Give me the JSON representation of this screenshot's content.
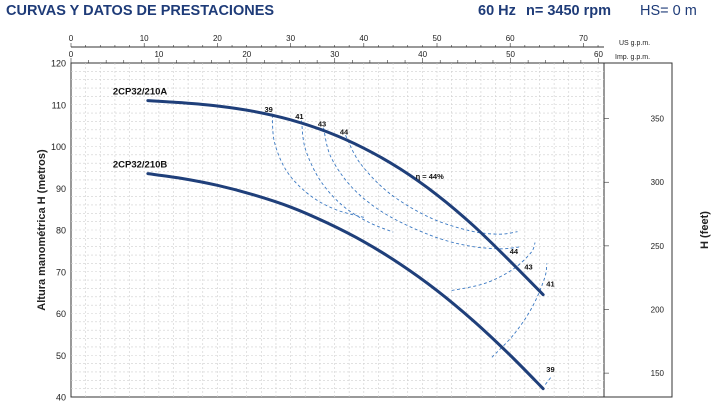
{
  "header": {
    "title": "CURVAS Y DATOS DE PRESTACIONES",
    "frequency": "60 Hz",
    "speed": "n= 3450 rpm",
    "hs": "HS= 0 m"
  },
  "colors": {
    "curve": "#1f3f7a",
    "grid": "#cfcfcf",
    "text": "#1e3b78"
  },
  "chart_data": {
    "type": "line",
    "title": "",
    "xlabel_top_us": "US g.p.m.",
    "xlabel_top_imp": "Imp. g.p.m.",
    "ylabel_left": "Altura manométrica H (metros)",
    "ylabel_right": "H (feet)",
    "xlim_us": [
      0,
      80
    ],
    "us_ticks": [
      0,
      10,
      20,
      30,
      40,
      50,
      60,
      70
    ],
    "imp_ticks": [
      0,
      10,
      20,
      30,
      40,
      50,
      60
    ],
    "ylim_m": [
      40,
      120
    ],
    "y_ticks_m": [
      40,
      50,
      60,
      70,
      80,
      90,
      100,
      110,
      120
    ],
    "y_ticks_ft": [
      150,
      200,
      250,
      300,
      350
    ],
    "grid": true,
    "series": [
      {
        "name": "2CP32/210A",
        "x": [
          10.5,
          15,
          20,
          25,
          30,
          35,
          40,
          45,
          50,
          55,
          60,
          64.5
        ],
        "y": [
          111,
          110.5,
          109.7,
          108.4,
          106.4,
          103.5,
          99.6,
          94.6,
          88.4,
          81,
          72.5,
          64.5
        ]
      },
      {
        "name": "2CP32/210B",
        "x": [
          10.5,
          15,
          20,
          25,
          30,
          35,
          40,
          45,
          50,
          55,
          60,
          64.5
        ],
        "y": [
          93.5,
          92.4,
          90.7,
          88.4,
          85.5,
          81.7,
          77.2,
          71.8,
          65.5,
          58.2,
          50,
          42
        ]
      }
    ],
    "efficiency_labels": [
      {
        "text": "39",
        "x": 27,
        "y": 108.3
      },
      {
        "text": "41",
        "x": 31.2,
        "y": 106.6
      },
      {
        "text": "43",
        "x": 34.3,
        "y": 104.8
      },
      {
        "text": "44",
        "x": 37.3,
        "y": 102.9
      },
      {
        "text": "η = 44%",
        "x": 49,
        "y": 92.2
      },
      {
        "text": "44",
        "x": 60.5,
        "y": 74.3
      },
      {
        "text": "43",
        "x": 62.5,
        "y": 70.5
      },
      {
        "text": "41",
        "x": 65.5,
        "y": 66.5
      },
      {
        "text": "39",
        "x": 65.5,
        "y": 46
      }
    ],
    "efficiency_curves": [
      {
        "label": "39",
        "x": [
          27.5,
          27.8,
          29.5,
          32.5,
          36,
          40
        ],
        "y": [
          107.6,
          101,
          94,
          88.5,
          85,
          83
        ]
      },
      {
        "label": "41",
        "x": [
          31.5,
          32,
          34,
          37,
          40.5,
          44
        ],
        "y": [
          106.2,
          99.5,
          92,
          86,
          82,
          79.5
        ]
      },
      {
        "label": "43",
        "x": [
          34.5,
          35.5,
          38.5,
          43,
          49,
          54,
          58.5,
          61.5
        ],
        "y": [
          104.5,
          97.5,
          90,
          83.8,
          78.8,
          76.3,
          75.5,
          76
        ]
      },
      {
        "label": "44",
        "x": [
          37.5,
          39.5,
          43.5,
          49,
          54.5,
          58.5,
          61
        ],
        "y": [
          102.7,
          96,
          88.8,
          83,
          79.8,
          79,
          79.6
        ]
      },
      {
        "label": "43b",
        "x": [
          52,
          56.5,
          60.3,
          62.8,
          63.4
        ],
        "y": [
          65.5,
          67.2,
          70.5,
          74.5,
          77
        ]
      },
      {
        "label": "41b",
        "x": [
          57.5,
          60.5,
          63,
          64.7,
          65
        ],
        "y": [
          49.5,
          55,
          61.5,
          68.5,
          72
        ]
      },
      {
        "label": "39b",
        "x": [
          64.8,
          65.6
        ],
        "y": [
          43,
          44.8
        ]
      }
    ]
  }
}
